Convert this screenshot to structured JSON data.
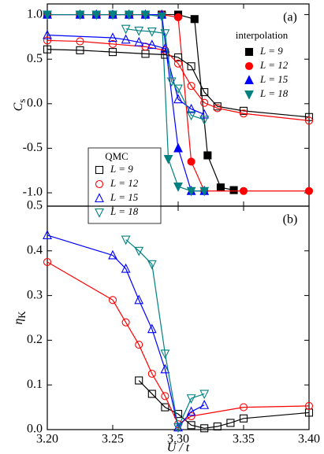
{
  "chart_data": [
    {
      "type": "line",
      "panel_label": "(a)",
      "ylabel_symbol": "C",
      "ylabel_subscript": "s",
      "xlim": [
        3.2,
        3.4
      ],
      "ylim": [
        -1.15,
        1.12
      ],
      "xticks": [
        {
          "value": 3.2,
          "label": "3.20"
        },
        3.25,
        {
          "value": 3.3,
          "label": "3.30"
        },
        3.35,
        {
          "value": 3.4,
          "label": "3.40"
        }
      ],
      "yticks": [
        {
          "value": -1,
          "label": "-1.0"
        },
        -0.5,
        {
          "value": 0,
          "label": "0.0"
        },
        0.5,
        {
          "value": 1,
          "label": "1.0"
        }
      ],
      "series_groups": [
        {
          "name": "interpolation",
          "series": [
            {
              "name": "L = 9",
              "color": "#000000",
              "marker": "square",
              "filled": true,
              "x": [
                3.2,
                3.225,
                3.2375,
                3.25,
                3.2625,
                3.275,
                3.2875,
                3.3,
                3.3125,
                3.3225,
                3.3325,
                3.3425
              ],
              "values": [
                1,
                1,
                1,
                1,
                1,
                1,
                1,
                1,
                0.95,
                -0.58,
                -0.94,
                -0.97
              ]
            },
            {
              "name": "L = 12",
              "color": "#ff0000",
              "marker": "circle",
              "filled": true,
              "x": [
                3.2,
                3.225,
                3.2375,
                3.25,
                3.2625,
                3.275,
                3.2875,
                3.3,
                3.31,
                3.32,
                3.35,
                3.4
              ],
              "values": [
                1,
                1,
                1,
                1,
                1,
                1,
                1,
                0.97,
                -0.65,
                -0.98,
                -0.98,
                -0.98
              ]
            },
            {
              "name": "L = 15",
              "color": "#0000ff",
              "marker": "triangle-up",
              "filled": true,
              "x": [
                3.2,
                3.225,
                3.2375,
                3.25,
                3.2625,
                3.275,
                3.2875,
                3.3,
                3.31,
                3.32
              ],
              "values": [
                1,
                1,
                1,
                1,
                1,
                1,
                1,
                -0.5,
                -0.98,
                -0.98
              ]
            },
            {
              "name": "L = 18",
              "color": "#008080",
              "marker": "triangle-down",
              "filled": true,
              "x": [
                3.2,
                3.225,
                3.2375,
                3.25,
                3.2625,
                3.275,
                3.2875,
                3.2925,
                3.3,
                3.31,
                3.32
              ],
              "values": [
                1,
                1,
                1,
                1,
                1,
                1,
                0.98,
                -0.62,
                -0.93,
                -0.98,
                -0.98
              ]
            }
          ]
        },
        {
          "name": "QMC",
          "series": [
            {
              "name": "L = 9",
              "color": "#000000",
              "marker": "square",
              "filled": false,
              "x": [
                3.2,
                3.225,
                3.25,
                3.275,
                3.29,
                3.3,
                3.31,
                3.32,
                3.33,
                3.35,
                3.4
              ],
              "values": [
                0.61,
                0.6,
                0.58,
                0.56,
                0.55,
                0.52,
                0.42,
                0.13,
                -0.03,
                -0.08,
                -0.15
              ]
            },
            {
              "name": "L = 12",
              "color": "#ff0000",
              "marker": "circle",
              "filled": false,
              "x": [
                3.2,
                3.225,
                3.25,
                3.275,
                3.29,
                3.3,
                3.31,
                3.32,
                3.33,
                3.35,
                3.4
              ],
              "values": [
                0.71,
                0.7,
                0.67,
                0.64,
                0.6,
                0.45,
                0.2,
                0.01,
                -0.05,
                -0.11,
                -0.19
              ]
            },
            {
              "name": "L = 15",
              "color": "#0000ff",
              "marker": "triangle-up",
              "filled": false,
              "x": [
                3.2,
                3.25,
                3.26,
                3.27,
                3.28,
                3.29,
                3.3,
                3.31,
                3.32
              ],
              "values": [
                0.77,
                0.74,
                0.72,
                0.69,
                0.66,
                0.62,
                0.05,
                -0.06,
                -0.12
              ]
            },
            {
              "name": "L = 18",
              "color": "#008080",
              "marker": "triangle-down",
              "filled": false,
              "x": [
                3.26,
                3.27,
                3.28,
                3.29,
                3.295,
                3.3,
                3.31,
                3.32
              ],
              "values": [
                0.84,
                0.82,
                0.81,
                0.79,
                0.25,
                0.17,
                -0.13,
                -0.18
              ]
            }
          ]
        }
      ]
    },
    {
      "type": "line",
      "panel_label": "(b)",
      "ylabel_symbol": "η",
      "ylabel_subscript": "K",
      "xlabel": "U / t",
      "xlim": [
        3.2,
        3.4
      ],
      "ylim": [
        0,
        0.5
      ],
      "xticks": [
        {
          "value": 3.2,
          "label": "3.20"
        },
        3.25,
        {
          "value": 3.3,
          "label": "3.30"
        },
        3.35,
        {
          "value": 3.4,
          "label": "3.40"
        }
      ],
      "yticks": [
        {
          "value": 0,
          "label": "0.0"
        },
        0.1,
        0.2,
        0.3,
        0.4,
        0.5
      ],
      "series_groups": [
        {
          "series": [
            {
              "color": "#000000",
              "marker": "square",
              "filled": false,
              "x": [
                3.27,
                3.28,
                3.29,
                3.3,
                3.31,
                3.32,
                3.33,
                3.34,
                3.35,
                3.4
              ],
              "values": [
                0.11,
                0.08,
                0.05,
                0.035,
                0.01,
                0.003,
                0.007,
                0.015,
                0.025,
                0.038
              ]
            },
            {
              "color": "#ff0000",
              "marker": "circle",
              "filled": false,
              "x": [
                3.2,
                3.25,
                3.26,
                3.27,
                3.28,
                3.29,
                3.3,
                3.31,
                3.35,
                3.4
              ],
              "values": [
                0.375,
                0.29,
                0.24,
                0.19,
                0.125,
                0.075,
                0.012,
                0.03,
                0.05,
                0.053
              ]
            },
            {
              "color": "#0000ff",
              "marker": "triangle-up",
              "filled": false,
              "x": [
                3.2,
                3.25,
                3.26,
                3.27,
                3.28,
                3.29,
                3.3,
                3.31,
                3.32
              ],
              "values": [
                0.435,
                0.39,
                0.36,
                0.29,
                0.225,
                0.135,
                0.005,
                0.04,
                0.055
              ]
            },
            {
              "color": "#008080",
              "marker": "triangle-down",
              "filled": false,
              "x": [
                3.26,
                3.27,
                3.28,
                3.29,
                3.3,
                3.31,
                3.32
              ],
              "values": [
                0.425,
                0.4,
                0.37,
                0.17,
                0.005,
                0.07,
                0.08
              ]
            }
          ]
        }
      ]
    }
  ]
}
